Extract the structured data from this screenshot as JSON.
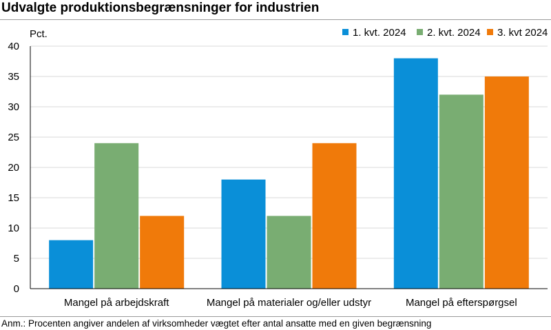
{
  "title": "Udvalgte produktionsbegrænsninger for industrien",
  "note": "Anm.: Procenten angiver andelen af virksomheder vægtet efter antal ansatte med en given begrænsning",
  "colors": {
    "q1": "#0a8fd8",
    "q2": "#79ad72",
    "q3": "#f07a0a",
    "grid": "#d9d9d9"
  },
  "chart_data": {
    "type": "bar",
    "title": "Udvalgte produktionsbegrænsninger for industrien",
    "ylabel": "Pct.",
    "ylim": [
      0,
      40
    ],
    "yticks": [
      0,
      5,
      10,
      15,
      20,
      25,
      30,
      35,
      40
    ],
    "grid": true,
    "legend_position": "top-right",
    "categories": [
      "Mangel på arbejdskraft",
      "Mangel på materialer og/eller udstyr",
      "Mangel på efterspørgsel"
    ],
    "series": [
      {
        "name": "1. kvt. 2024",
        "color": "#0a8fd8",
        "values": [
          8,
          18,
          38
        ]
      },
      {
        "name": "2. kvt. 2024",
        "color": "#79ad72",
        "values": [
          24,
          12,
          32
        ]
      },
      {
        "name": "3. kvt 2024",
        "color": "#f07a0a",
        "values": [
          12,
          24,
          35
        ]
      }
    ]
  }
}
